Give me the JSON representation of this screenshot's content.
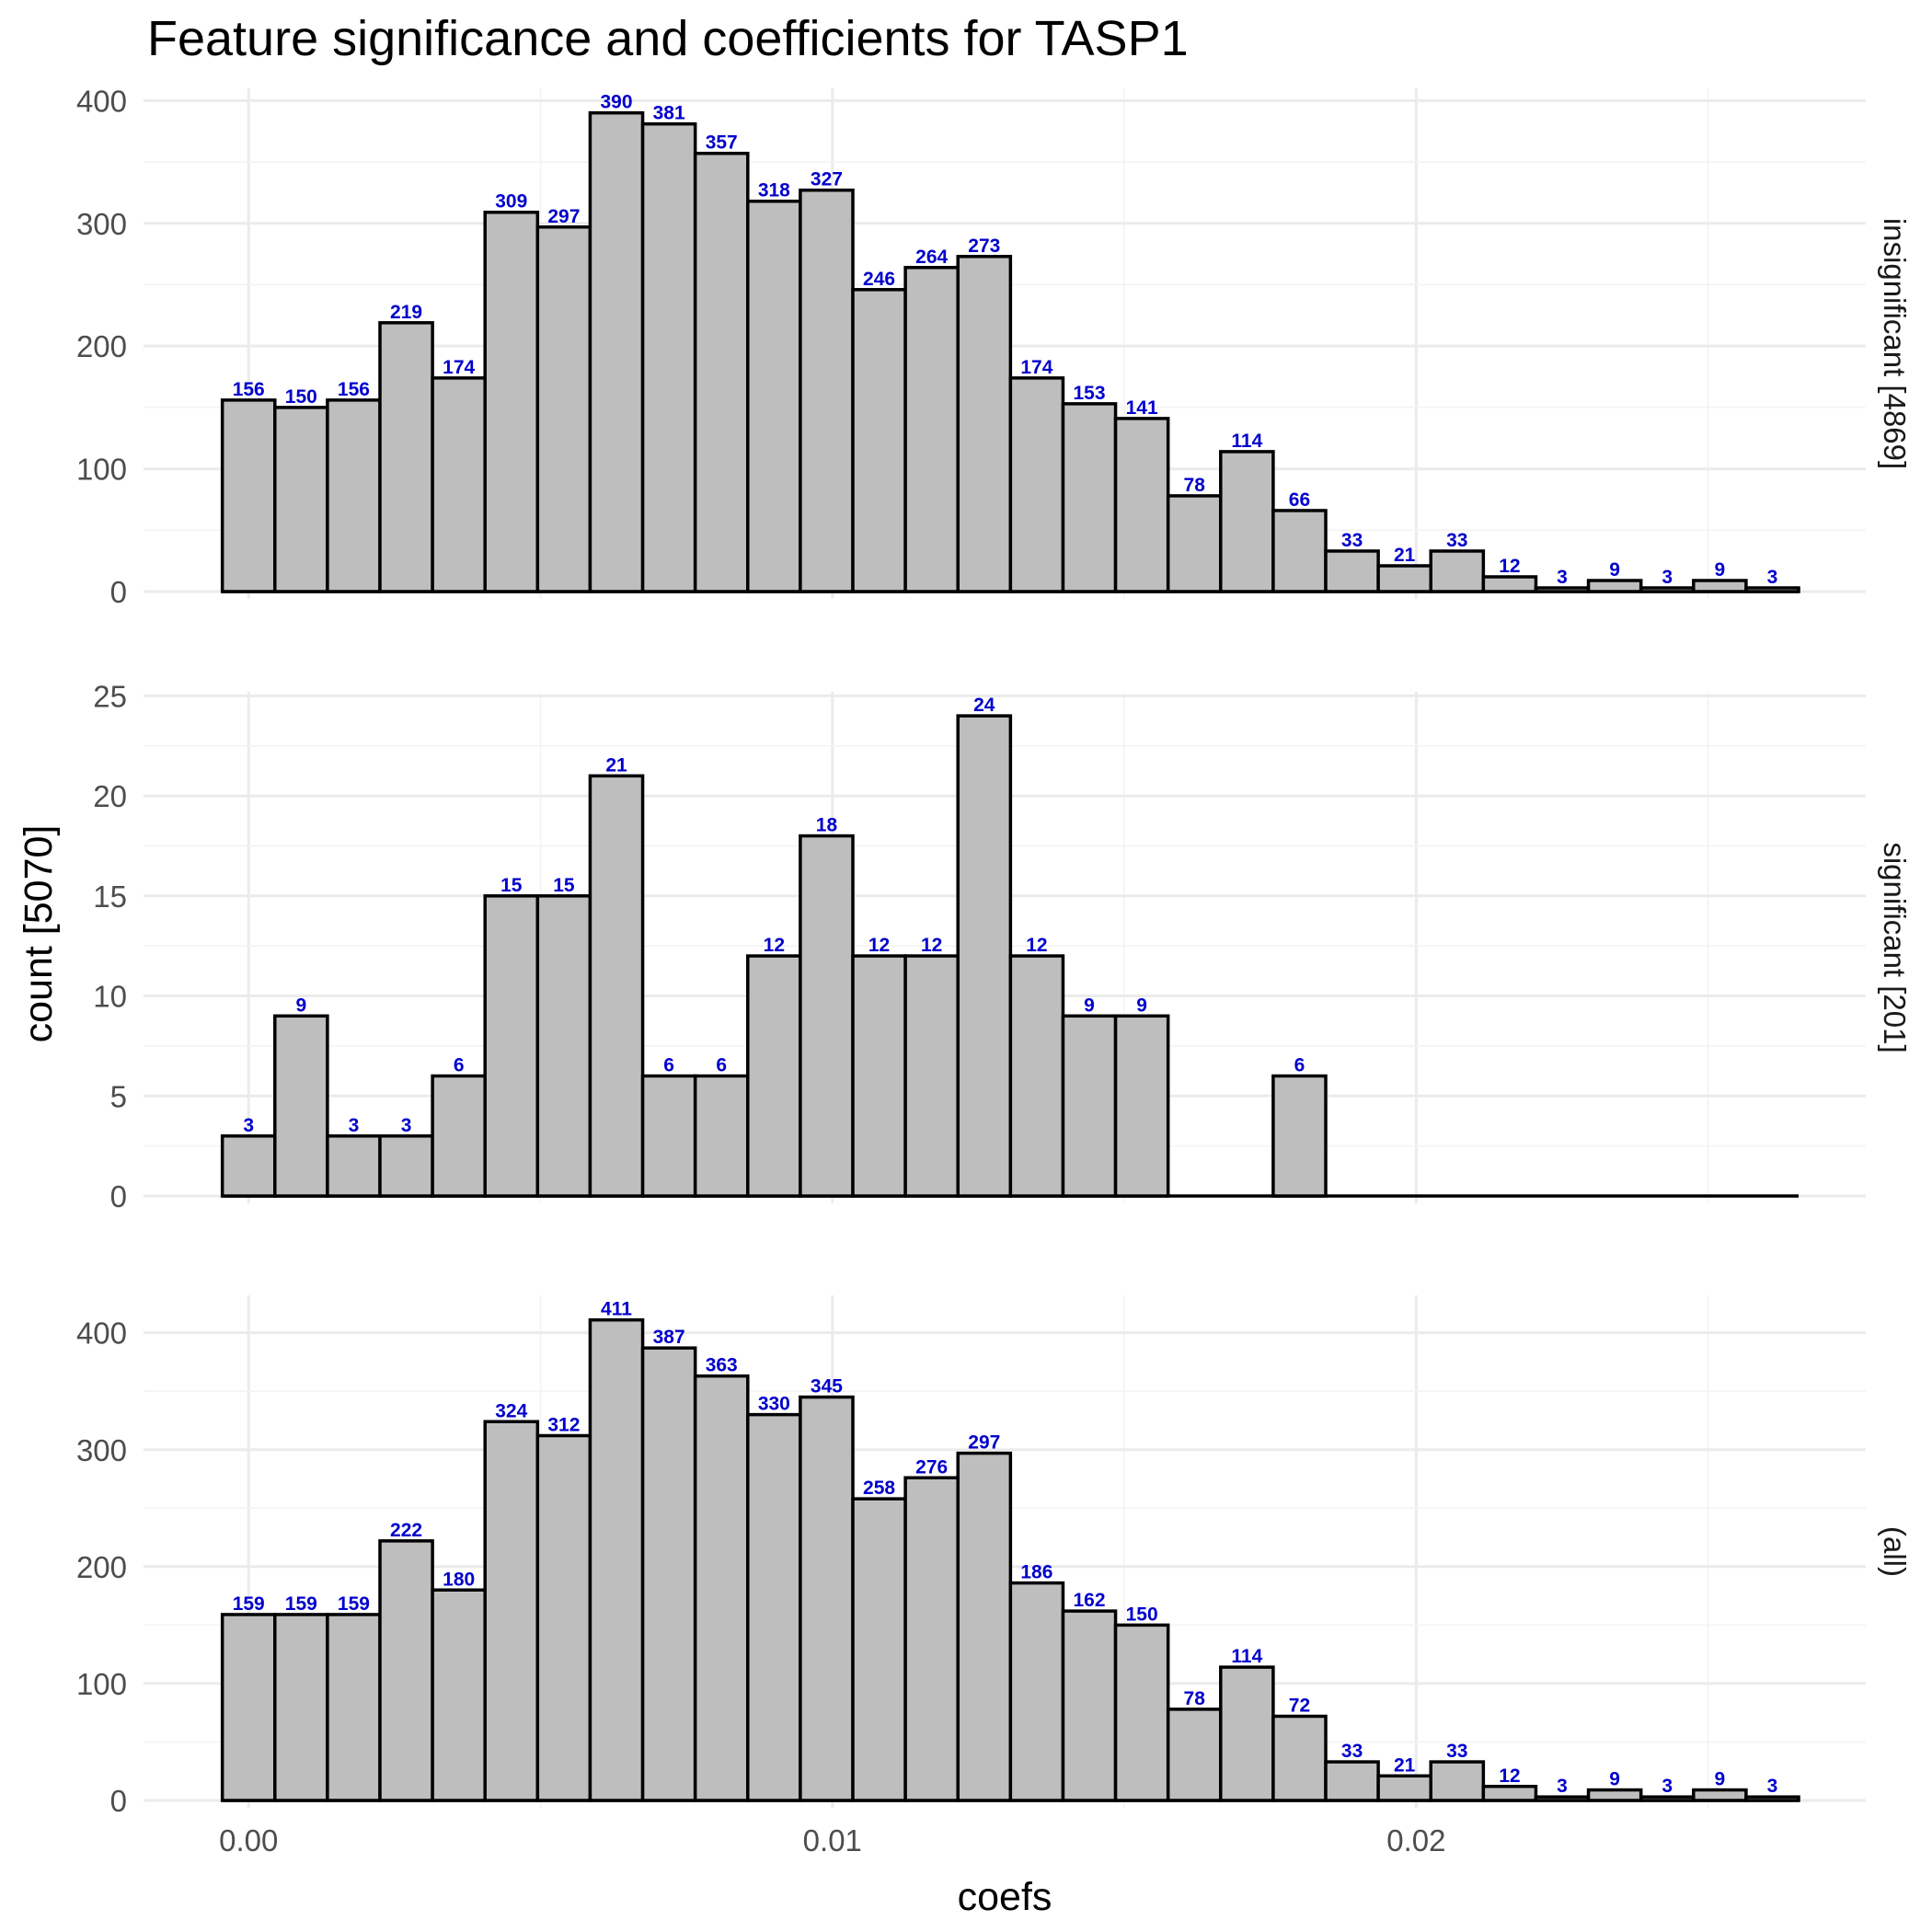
{
  "chart_data": {
    "type": "bar",
    "title": "Feature significance and coefficients for TASP1",
    "xlabel": "coefs",
    "ylabel": "count [5070]",
    "x_ticks": [
      "0.00",
      "0.01",
      "0.02"
    ],
    "x_tick_values": [
      0.0,
      0.01,
      0.02
    ],
    "xlim": [
      -0.0018,
      0.0277
    ],
    "bin_start": -0.00045,
    "bin_width": 0.0009,
    "grid": true,
    "colors": {
      "bar_fill": "#bebebe",
      "bar_outline": "#000000",
      "label": "#0000cc"
    },
    "panels": [
      {
        "strip": "insignificant [4869]",
        "ylim": [
          0,
          410
        ],
        "y_ticks": [
          "0",
          "100",
          "200",
          "300",
          "400"
        ],
        "y_tick_values": [
          0,
          100,
          200,
          300,
          400
        ],
        "values": [
          156,
          150,
          156,
          219,
          174,
          309,
          297,
          390,
          381,
          357,
          318,
          327,
          246,
          264,
          273,
          174,
          153,
          141,
          78,
          114,
          66,
          33,
          21,
          33,
          12,
          3,
          9,
          3,
          9,
          3
        ],
        "labels": [
          "156",
          "150",
          "156",
          "219",
          "174",
          "309",
          "297",
          "390",
          "381",
          "357",
          "318",
          "327",
          "246",
          "264",
          "273",
          "174",
          "153",
          "141",
          "78",
          "114",
          "66",
          "33",
          "21",
          "33",
          "12",
          "3",
          "9",
          "3",
          "9",
          "3"
        ]
      },
      {
        "strip": "significant [201]",
        "ylim": [
          0,
          25.2
        ],
        "y_ticks": [
          "0",
          "5",
          "10",
          "15",
          "20",
          "25"
        ],
        "y_tick_values": [
          0,
          5,
          10,
          15,
          20,
          25
        ],
        "values": [
          3,
          9,
          3,
          3,
          6,
          15,
          15,
          21,
          6,
          6,
          12,
          18,
          12,
          12,
          24,
          12,
          9,
          9,
          0,
          0,
          6,
          0,
          0,
          0,
          0,
          0,
          0,
          0,
          0,
          0
        ],
        "labels": [
          "3",
          "9",
          "3",
          "3",
          "6",
          "15",
          "15",
          "21",
          "6",
          "6",
          "12",
          "18",
          "12",
          "12",
          "24",
          "12",
          "9",
          "9",
          "",
          "",
          "6",
          "",
          "",
          "",
          "",
          "",
          "",
          "",
          "",
          ""
        ]
      },
      {
        "strip": "(all)",
        "ylim": [
          0,
          432
        ],
        "y_ticks": [
          "0",
          "100",
          "200",
          "300",
          "400"
        ],
        "y_tick_values": [
          0,
          100,
          200,
          300,
          400
        ],
        "values": [
          159,
          159,
          159,
          222,
          180,
          324,
          312,
          411,
          387,
          363,
          330,
          345,
          258,
          276,
          297,
          186,
          162,
          150,
          78,
          114,
          72,
          33,
          21,
          33,
          12,
          3,
          9,
          3,
          9,
          3
        ],
        "labels": [
          "159",
          "159",
          "159",
          "222",
          "180",
          "324",
          "312",
          "411",
          "387",
          "363",
          "330",
          "345",
          "258",
          "276",
          "297",
          "186",
          "162",
          "150",
          "78",
          "114",
          "72",
          "33",
          "21",
          "33",
          "12",
          "3",
          "9",
          "3",
          "9",
          "3"
        ]
      }
    ]
  }
}
